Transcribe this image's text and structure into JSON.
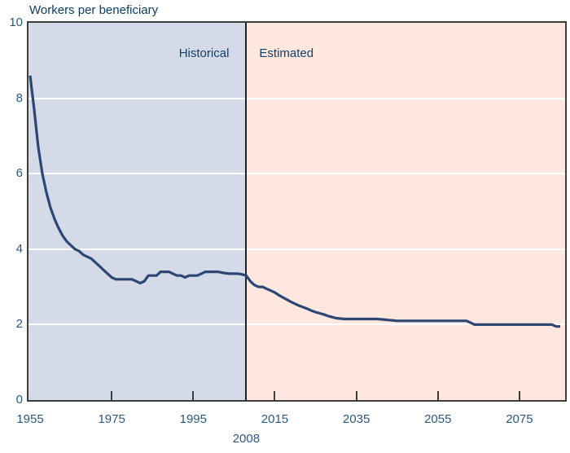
{
  "title": "Workers per beneficiary",
  "chart_data": {
    "type": "line",
    "title": "Workers per beneficiary",
    "xlabel": "",
    "ylabel": "Workers per beneficiary",
    "xlim": [
      1954.6,
      2086.2
    ],
    "ylim": [
      0,
      10
    ],
    "y_ticks": [
      0,
      2,
      4,
      6,
      8,
      10
    ],
    "x_ticks": [
      1955,
      1975,
      1995,
      2015,
      2035,
      2055,
      2075
    ],
    "grid": "horizontal white gridlines",
    "legend": "none",
    "divider": {
      "year": 2008,
      "label": "2008"
    },
    "regions": [
      {
        "label": "Historical",
        "from": 1954.6,
        "to": 2008,
        "color": "#d4dae7"
      },
      {
        "label": "Estimated",
        "from": 2008,
        "to": 2086.2,
        "color": "#fde7de"
      }
    ],
    "colors": {
      "line": "#2d4673",
      "plot_border": "#3d3d3d",
      "divider_line": "#242022",
      "title_text": "#0d3e67",
      "region_label_text": "#143f63",
      "axis_label_text": "#2b5882",
      "gridline": "#ffffff"
    },
    "series": [
      {
        "name": "Workers per beneficiary",
        "x": [
          1955,
          1956,
          1957,
          1958,
          1959,
          1960,
          1961,
          1962,
          1963,
          1964,
          1965,
          1966,
          1967,
          1968,
          1969,
          1970,
          1971,
          1972,
          1973,
          1974,
          1975,
          1976,
          1977,
          1978,
          1979,
          1980,
          1981,
          1982,
          1983,
          1984,
          1985,
          1986,
          1987,
          1988,
          1989,
          1990,
          1991,
          1992,
          1993,
          1994,
          1995,
          1996,
          1997,
          1998,
          1999,
          2000,
          2001,
          2002,
          2003,
          2004,
          2005,
          2006,
          2007,
          2008,
          2009,
          2010,
          2011,
          2012,
          2013,
          2014,
          2015,
          2016,
          2017,
          2018,
          2019,
          2020,
          2021,
          2022,
          2023,
          2024,
          2025,
          2026,
          2027,
          2028,
          2029,
          2030,
          2031,
          2032,
          2033,
          2034,
          2035,
          2036,
          2037,
          2038,
          2039,
          2040,
          2041,
          2042,
          2043,
          2044,
          2045,
          2046,
          2047,
          2048,
          2049,
          2050,
          2051,
          2052,
          2053,
          2054,
          2055,
          2056,
          2057,
          2058,
          2059,
          2060,
          2061,
          2062,
          2063,
          2064,
          2065,
          2066,
          2067,
          2068,
          2069,
          2070,
          2071,
          2072,
          2073,
          2074,
          2075,
          2076,
          2077,
          2078,
          2079,
          2080,
          2081,
          2082,
          2083,
          2084,
          2085
        ],
        "values": [
          8.6,
          7.7,
          6.7,
          6.0,
          5.5,
          5.1,
          4.8,
          4.55,
          4.35,
          4.2,
          4.1,
          4.0,
          3.95,
          3.85,
          3.8,
          3.75,
          3.65,
          3.55,
          3.45,
          3.35,
          3.25,
          3.2,
          3.2,
          3.2,
          3.2,
          3.2,
          3.15,
          3.1,
          3.15,
          3.3,
          3.3,
          3.3,
          3.4,
          3.4,
          3.4,
          3.35,
          3.3,
          3.3,
          3.25,
          3.3,
          3.3,
          3.3,
          3.35,
          3.4,
          3.4,
          3.4,
          3.4,
          3.38,
          3.36,
          3.35,
          3.35,
          3.35,
          3.33,
          3.3,
          3.15,
          3.05,
          3.0,
          3.0,
          2.95,
          2.9,
          2.85,
          2.78,
          2.72,
          2.66,
          2.6,
          2.55,
          2.5,
          2.46,
          2.42,
          2.37,
          2.33,
          2.3,
          2.27,
          2.23,
          2.2,
          2.17,
          2.16,
          2.15,
          2.15,
          2.15,
          2.15,
          2.15,
          2.15,
          2.15,
          2.15,
          2.15,
          2.14,
          2.13,
          2.12,
          2.11,
          2.1,
          2.1,
          2.1,
          2.1,
          2.1,
          2.1,
          2.1,
          2.1,
          2.1,
          2.1,
          2.1,
          2.1,
          2.1,
          2.1,
          2.1,
          2.1,
          2.1,
          2.1,
          2.05,
          2.0,
          2.0,
          2.0,
          2.0,
          2.0,
          2.0,
          2.0,
          2.0,
          2.0,
          2.0,
          2.0,
          2.0,
          2.0,
          2.0,
          2.0,
          2.0,
          2.0,
          2.0,
          2.0,
          2.0,
          1.95,
          1.95
        ]
      }
    ]
  }
}
